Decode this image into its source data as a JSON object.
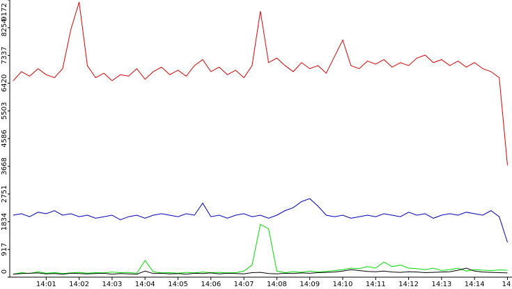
{
  "chart_data": {
    "type": "line",
    "categories": [
      null,
      null,
      null,
      null,
      "14:01",
      null,
      null,
      null,
      "14:02",
      null,
      null,
      null,
      "14:03",
      null,
      null,
      null,
      "14:04",
      null,
      null,
      null,
      "14:05",
      null,
      null,
      null,
      "14:06",
      null,
      null,
      null,
      "14:07",
      null,
      null,
      null,
      "14:08",
      null,
      null,
      null,
      "14:09",
      null,
      null,
      null,
      "14:10",
      null,
      null,
      null,
      "14:11",
      null,
      null,
      null,
      "14:12",
      null,
      null,
      null,
      "14:13",
      null,
      null,
      null,
      "14:14",
      null,
      null,
      null,
      "14"
    ],
    "ylim": [
      0,
      9172
    ],
    "yticks": [
      0,
      917,
      1834,
      2751,
      3668,
      4586,
      5503,
      6420,
      7337,
      8254,
      9172
    ],
    "series": [
      {
        "color": "#dd0000",
        "values": [
          6500,
          6800,
          6650,
          6900,
          6700,
          6600,
          6900,
          8200,
          9100,
          7000,
          6600,
          6750,
          6500,
          6700,
          6650,
          6900,
          6550,
          6800,
          6950,
          6700,
          6850,
          6650,
          7000,
          7200,
          6800,
          6950,
          6700,
          6850,
          6600,
          7000,
          8800,
          7100,
          7250,
          7000,
          6800,
          7100,
          6900,
          7000,
          6750,
          7300,
          7850,
          7000,
          6900,
          7150,
          7050,
          7200,
          6950,
          7100,
          7000,
          7250,
          7350,
          7100,
          7200,
          7000,
          7150,
          6950,
          7100,
          6900,
          6800,
          6600,
          3700
        ]
      },
      {
        "color": "#0000bb",
        "values": [
          2050,
          2100,
          2000,
          2150,
          2100,
          2200,
          2050,
          2100,
          2000,
          2050,
          1950,
          2000,
          2050,
          1900,
          2000,
          2050,
          1950,
          2050,
          2100,
          2050,
          2000,
          2100,
          2050,
          2450,
          2000,
          2050,
          1950,
          2050,
          2100,
          2000,
          2050,
          1950,
          2050,
          2200,
          2300,
          2500,
          2600,
          2350,
          2050,
          2000,
          2050,
          1950,
          2000,
          2050,
          2000,
          2100,
          2050,
          2000,
          2150,
          2050,
          2100,
          1950,
          2050,
          2100,
          2050,
          2150,
          2100,
          2050,
          2200,
          2000,
          1150
        ]
      },
      {
        "color": "#00dd00",
        "values": [
          100,
          150,
          120,
          180,
          130,
          150,
          120,
          140,
          160,
          130,
          150,
          140,
          170,
          150,
          160,
          130,
          550,
          180,
          140,
          150,
          130,
          160,
          140,
          170,
          150,
          160,
          140,
          150,
          200,
          400,
          1750,
          1600,
          200,
          150,
          180,
          160,
          200,
          170,
          190,
          220,
          250,
          300,
          280,
          350,
          300,
          500,
          350,
          400,
          300,
          280,
          250,
          300,
          220,
          250,
          300,
          200,
          250,
          230,
          220,
          240,
          230
        ]
      },
      {
        "color": "#000000",
        "values": [
          100,
          120,
          130,
          140,
          110,
          120,
          100,
          130,
          120,
          110,
          120,
          130,
          100,
          120,
          110,
          100,
          200,
          120,
          130,
          110,
          120,
          100,
          130,
          120,
          140,
          110,
          130,
          120,
          110,
          150,
          160,
          120,
          110,
          130,
          120,
          140,
          130,
          150,
          160,
          170,
          200,
          250,
          220,
          190,
          180,
          200,
          170,
          160,
          180,
          170,
          150,
          160,
          170,
          180,
          230,
          300,
          200,
          170,
          160,
          150,
          140
        ]
      }
    ]
  }
}
